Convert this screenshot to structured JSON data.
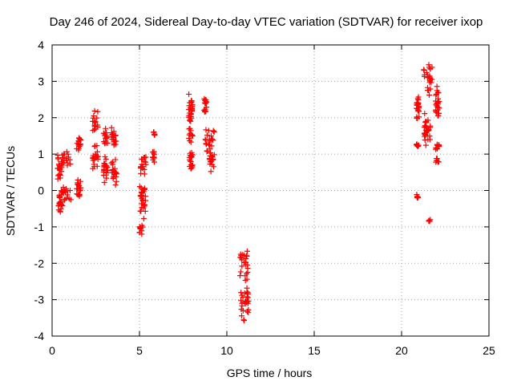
{
  "chart_data": {
    "type": "scatter",
    "title": "Day 246 of 2024, Sidereal Day-to-day VTEC variation (SDTVAR) for receiver ixop",
    "xlabel": "GPS time / hours",
    "ylabel": "SDTVAR / TECUs",
    "xlim": [
      0,
      25
    ],
    "ylim": [
      -4,
      4
    ],
    "xticks": [
      0,
      5,
      10,
      15,
      20,
      25
    ],
    "yticks": [
      -4,
      -3,
      -2,
      -1,
      0,
      1,
      2,
      3,
      4
    ],
    "grid": true,
    "marker": "+",
    "color": "#ff0000",
    "series": [
      {
        "name": "SDTVAR",
        "segments": [
          {
            "x0": 0.3,
            "x1": 0.55,
            "ymin": 0.2,
            "ymax": 1.0
          },
          {
            "x0": 0.35,
            "x1": 0.6,
            "ymin": -0.7,
            "ymax": 0.1
          },
          {
            "x0": 0.55,
            "x1": 1.1,
            "ymin": 0.5,
            "ymax": 1.2
          },
          {
            "x0": 0.6,
            "x1": 1.2,
            "ymin": -0.3,
            "ymax": 0.15
          },
          {
            "x0": 1.4,
            "x1": 1.65,
            "ymin": 1.0,
            "ymax": 1.5
          },
          {
            "x0": 1.4,
            "x1": 1.65,
            "ymin": -0.3,
            "ymax": 0.4
          },
          {
            "x0": 2.3,
            "x1": 2.65,
            "ymin": 1.6,
            "ymax": 2.2
          },
          {
            "x0": 2.3,
            "x1": 2.65,
            "ymin": 0.5,
            "ymax": 1.3
          },
          {
            "x0": 2.95,
            "x1": 3.2,
            "ymin": 1.2,
            "ymax": 1.8
          },
          {
            "x0": 2.95,
            "x1": 3.2,
            "ymin": 0.2,
            "ymax": 1.0
          },
          {
            "x0": 3.4,
            "x1": 3.7,
            "ymin": 1.1,
            "ymax": 1.8
          },
          {
            "x0": 3.4,
            "x1": 3.7,
            "ymin": 0.1,
            "ymax": 0.9
          },
          {
            "x0": 5.0,
            "x1": 5.2,
            "ymin": -1.2,
            "ymax": -0.9
          },
          {
            "x0": 5.0,
            "x1": 5.35,
            "ymin": -0.8,
            "ymax": 0.4
          },
          {
            "x0": 5.05,
            "x1": 5.4,
            "ymin": 0.4,
            "ymax": 1.0
          },
          {
            "x0": 5.75,
            "x1": 5.85,
            "ymin": 0.75,
            "ymax": 1.1
          },
          {
            "x0": 5.8,
            "x1": 5.9,
            "ymin": 1.5,
            "ymax": 1.65
          },
          {
            "x0": 7.8,
            "x1": 8.05,
            "ymin": 1.2,
            "ymax": 2.85
          },
          {
            "x0": 7.85,
            "x1": 8.05,
            "ymin": 0.5,
            "ymax": 1.2
          },
          {
            "x0": 8.7,
            "x1": 8.85,
            "ymin": 2.1,
            "ymax": 2.6
          },
          {
            "x0": 8.75,
            "x1": 9.3,
            "ymin": 0.9,
            "ymax": 1.8
          },
          {
            "x0": 9.0,
            "x1": 9.25,
            "ymin": 0.5,
            "ymax": 1.1
          },
          {
            "x0": 10.75,
            "x1": 11.2,
            "ymin": -2.5,
            "ymax": -1.55
          },
          {
            "x0": 10.8,
            "x1": 11.25,
            "ymin": -3.6,
            "ymax": -2.5
          },
          {
            "x0": 20.85,
            "x1": 20.95,
            "ymin": -0.25,
            "ymax": -0.1
          },
          {
            "x0": 20.85,
            "x1": 21.0,
            "ymin": 1.2,
            "ymax": 1.3
          },
          {
            "x0": 20.85,
            "x1": 21.0,
            "ymin": 1.9,
            "ymax": 2.75
          },
          {
            "x0": 21.25,
            "x1": 21.75,
            "ymin": 2.6,
            "ymax": 3.6
          },
          {
            "x0": 21.3,
            "x1": 21.65,
            "ymin": 1.1,
            "ymax": 2.2
          },
          {
            "x0": 21.55,
            "x1": 21.65,
            "ymin": -0.85,
            "ymax": -0.8
          },
          {
            "x0": 21.95,
            "x1": 22.15,
            "ymin": 1.9,
            "ymax": 2.9
          },
          {
            "x0": 21.95,
            "x1": 22.15,
            "ymin": 1.1,
            "ymax": 1.35
          },
          {
            "x0": 21.95,
            "x1": 22.15,
            "ymin": 0.75,
            "ymax": 0.9
          }
        ]
      }
    ]
  }
}
